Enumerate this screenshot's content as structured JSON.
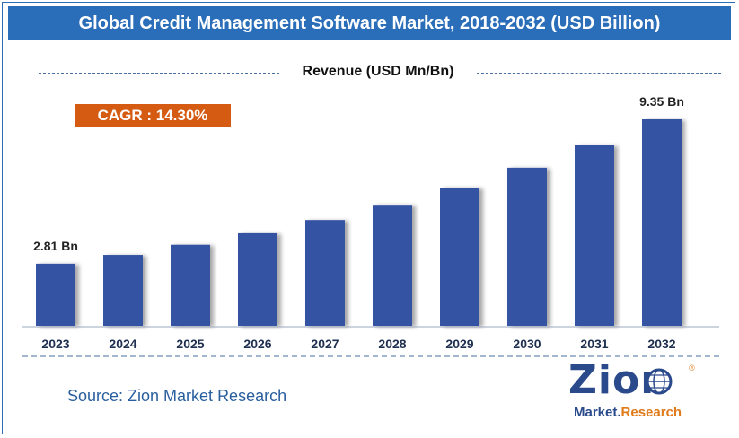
{
  "header": {
    "title": "Global Credit Management Software Market, 2018-2032 (USD Billion)"
  },
  "legend": {
    "label": "Revenue (USD Mn/Bn)"
  },
  "cagr": {
    "label": "CAGR : 14.30%"
  },
  "source": {
    "text": "Source: Zion Market Research"
  },
  "logo": {
    "name": "Zion",
    "subtitle_part1": "Market.",
    "subtitle_part2": "Research",
    "registered": "®"
  },
  "colors": {
    "title_bar": "#2a6db8",
    "bar": "#3552a3",
    "cagr_box": "#d55a12",
    "source_text": "#2a5f9e",
    "logo_blue": "#2a4a8c",
    "logo_orange": "#e07a1a"
  },
  "chart_data": {
    "type": "bar",
    "title": "Global Credit Management Software Market, 2018-2032 (USD Billion)",
    "xlabel": "",
    "ylabel": "Revenue (USD Mn/Bn)",
    "categories": [
      "2023",
      "2024",
      "2025",
      "2026",
      "2027",
      "2028",
      "2029",
      "2030",
      "2031",
      "2032"
    ],
    "values": [
      2.81,
      3.21,
      3.67,
      4.19,
      4.79,
      5.48,
      6.26,
      7.16,
      8.18,
      9.35
    ],
    "data_labels": [
      {
        "index": 0,
        "text": "2.81 Bn"
      },
      {
        "index": 9,
        "text": "9.35 Bn"
      }
    ],
    "ylim": [
      0,
      9.35
    ],
    "grid": false,
    "legend_position": "top-center"
  }
}
